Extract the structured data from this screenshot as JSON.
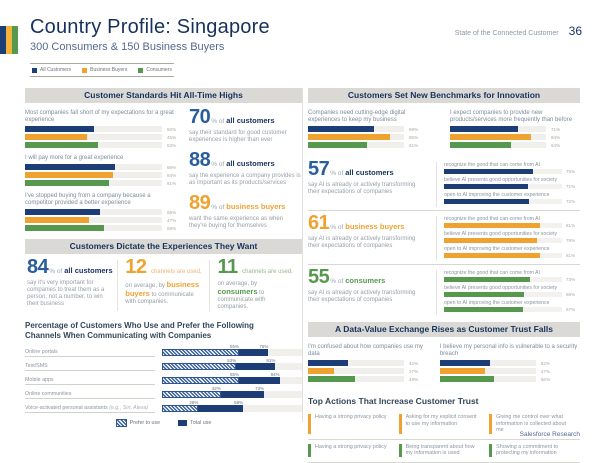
{
  "header": {
    "title": "Country Profile: Singapore",
    "subtitle": "300 Consumers & 150 Business Buyers",
    "report_name": "State of the Connected Customer",
    "page_number": "36",
    "footer": "Salesforce Research"
  },
  "legend": {
    "all": "All Customers",
    "business": "Business Buyers",
    "consumers": "Consumers"
  },
  "colors": {
    "all_customers": "#1d3d76",
    "business_buyers": "#f0a230",
    "consumers": "#56994e",
    "title_navy": "#16325c",
    "banner_bg": "#dad9d5"
  },
  "standards": {
    "title": "Customer Standards Hit All-Time Highs",
    "groups": [
      {
        "question": "Most companies fall short of my expectations for a great experience",
        "values": [
          50,
          45,
          53
        ]
      },
      {
        "question": "I will pay more for a great experience",
        "values": [
          66,
          64,
          61
        ]
      },
      {
        "question": "I've stopped buying from a company because a competitor provided a better experience",
        "values": [
          55,
          47,
          58
        ]
      }
    ],
    "callouts": [
      {
        "number": "70",
        "pct": "% of",
        "segment": "all customers",
        "desc": "say their standard for good customer experiences is higher than ever"
      },
      {
        "number": "88",
        "pct": "% of",
        "segment": "all customers",
        "desc": "say the experience a company provides is as important as its products/services"
      },
      {
        "number": "89",
        "pct": "% of",
        "segment": "business buyers",
        "desc": "want the same experience as when they're buying for themselves"
      }
    ]
  },
  "dictate": {
    "title": "Customers Dictate the Experiences They Want",
    "callout_84": {
      "number": "84",
      "pct": "% of",
      "segment": "all customers",
      "desc": "say it's very important for companies to treat them as a person, not a number, to win their business"
    },
    "callout_12": {
      "number": "12",
      "lead": "channels are used,",
      "mid": "on average, by",
      "segment": "business buyers",
      "desc": "to communicate with companies."
    },
    "callout_11": {
      "number": "11",
      "lead": "channels are used,",
      "mid": "on average, by",
      "segment": "consumers",
      "desc": "to communicate with companies."
    },
    "channels": {
      "heading": "Percentage of Customers Who Use and Prefer the Following Channels When Communicating with Companies",
      "rows": [
        {
          "label": "Online portals",
          "note": "",
          "prefer": 55,
          "total": 76
        },
        {
          "label": "Text/SMS",
          "note": "",
          "prefer": 53,
          "total": 81
        },
        {
          "label": "Mobile apps",
          "note": "",
          "prefer": 55,
          "total": 84
        },
        {
          "label": "Online communities",
          "note": "",
          "prefer": 42,
          "total": 73
        },
        {
          "label": "Voice-activated personal assistants",
          "note": "(e.g., Siri, Alexa)",
          "prefer": 26,
          "total": 58
        }
      ],
      "legend_prefer": "Prefer to use",
      "legend_total": "Total use"
    }
  },
  "innovation": {
    "title": "Customers Set New Benchmarks for Innovation",
    "groups": [
      {
        "question": "Companies need cutting-edge digital experiences to keep my business",
        "values": [
          69,
          85,
          61
        ]
      },
      {
        "question": "I expect companies to provide new products/services more frequently than before",
        "values": [
          71,
          84,
          64
        ]
      }
    ],
    "ai_rows": [
      {
        "number": "57",
        "pct": "% of",
        "segment": "all customers",
        "desc": "say AI is already or actively transforming their expectations of companies",
        "bars": [
          {
            "label": "recognize the good that can come from AI",
            "value": 75
          },
          {
            "label": "believe AI presents good opportunities for society",
            "value": 71
          },
          {
            "label": "open to AI improving the customer experience",
            "value": 72
          }
        ]
      },
      {
        "number": "61",
        "pct": "% of",
        "segment": "business buyers",
        "desc": "say AI is already or actively transforming their expectations of companies",
        "bars": [
          {
            "label": "recognize the good that can come from AI",
            "value": 81
          },
          {
            "label": "believe AI presents good opportunities for society",
            "value": 79
          },
          {
            "label": "open to AI improving the customer experience",
            "value": 81
          }
        ]
      },
      {
        "number": "55",
        "pct": "% of",
        "segment": "consumers",
        "desc": "say AI is already or actively transforming their expectations of companies",
        "bars": [
          {
            "label": "recognize the good that can come from AI",
            "value": 73
          },
          {
            "label": "believe AI presents good opportunities for society",
            "value": 68
          },
          {
            "label": "open to AI improving the customer experience",
            "value": 67
          }
        ]
      }
    ]
  },
  "trust": {
    "title": "A Data-Value Exchange Rises as Customer Trust Falls",
    "groups": [
      {
        "question": "I'm confused about how companies use my data",
        "values": [
          42,
          27,
          49
        ]
      },
      {
        "question": "I believe my personal info is vulnerable to a security breach",
        "values": [
          52,
          47,
          56
        ]
      }
    ],
    "top_actions": {
      "heading": "Top Actions That Increase Customer Trust",
      "row1": [
        "Having a strong privacy policy",
        "Asking for my explicit consent to use my information",
        "Giving me control over what information is collected about me"
      ],
      "row2": [
        "Having a strong privacy policy",
        "Being transparent about how my information is used",
        "Showing a commitment to protecting my information"
      ]
    }
  }
}
